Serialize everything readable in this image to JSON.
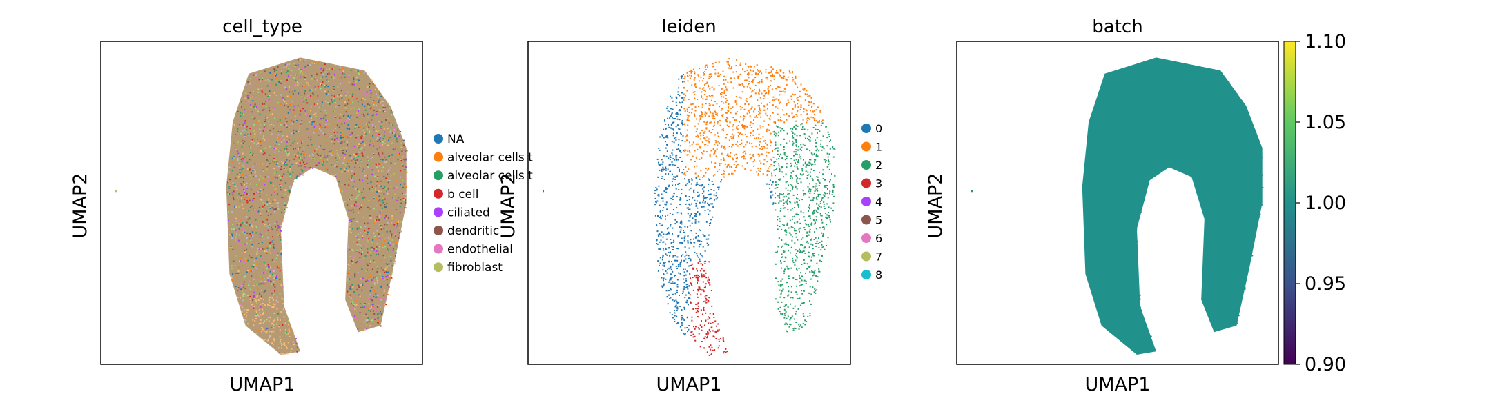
{
  "chart_data": [
    {
      "type": "scatter",
      "title": "cell_type",
      "xlabel": "UMAP1",
      "ylabel": "UMAP2",
      "color_mode": "categorical-mixed",
      "legend": {
        "placement": "right",
        "entries": [
          {
            "label": "NA",
            "color": "#1f77b4"
          },
          {
            "label": "alveolar cells t",
            "color": "#ff7f0e"
          },
          {
            "label": "alveolar cells t",
            "color": "#279e68"
          },
          {
            "label": "b cell",
            "color": "#d62728"
          },
          {
            "label": "ciliated",
            "color": "#aa40fc"
          },
          {
            "label": "dendritic",
            "color": "#8c564b"
          },
          {
            "label": "endothelial",
            "color": "#e377c2"
          },
          {
            "label": "fibroblast",
            "color": "#b5bd61"
          }
        ]
      },
      "grid": false
    },
    {
      "type": "scatter",
      "title": "leiden",
      "xlabel": "UMAP1",
      "ylabel": "UMAP2",
      "color_mode": "categorical-clusters",
      "legend": {
        "placement": "right",
        "entries": [
          {
            "label": "0",
            "color": "#1f77b4"
          },
          {
            "label": "1",
            "color": "#ff7f0e"
          },
          {
            "label": "2",
            "color": "#279e68"
          },
          {
            "label": "3",
            "color": "#d62728"
          },
          {
            "label": "4",
            "color": "#aa40fc"
          },
          {
            "label": "5",
            "color": "#8c564b"
          },
          {
            "label": "6",
            "color": "#e377c2"
          },
          {
            "label": "7",
            "color": "#b5bd61"
          },
          {
            "label": "8",
            "color": "#17becf"
          }
        ]
      },
      "grid": false
    },
    {
      "type": "scatter",
      "title": "batch",
      "xlabel": "UMAP1",
      "ylabel": "UMAP2",
      "color_mode": "continuous",
      "point_color": "#21918c",
      "colorbar": {
        "min": 0.9,
        "max": 1.1,
        "ticks": [
          "0.90",
          "0.95",
          "1.00",
          "1.05",
          "1.10"
        ],
        "colormap": [
          "#440154",
          "#3b528b",
          "#21918c",
          "#5ec962",
          "#fde725"
        ]
      },
      "grid": false
    }
  ]
}
